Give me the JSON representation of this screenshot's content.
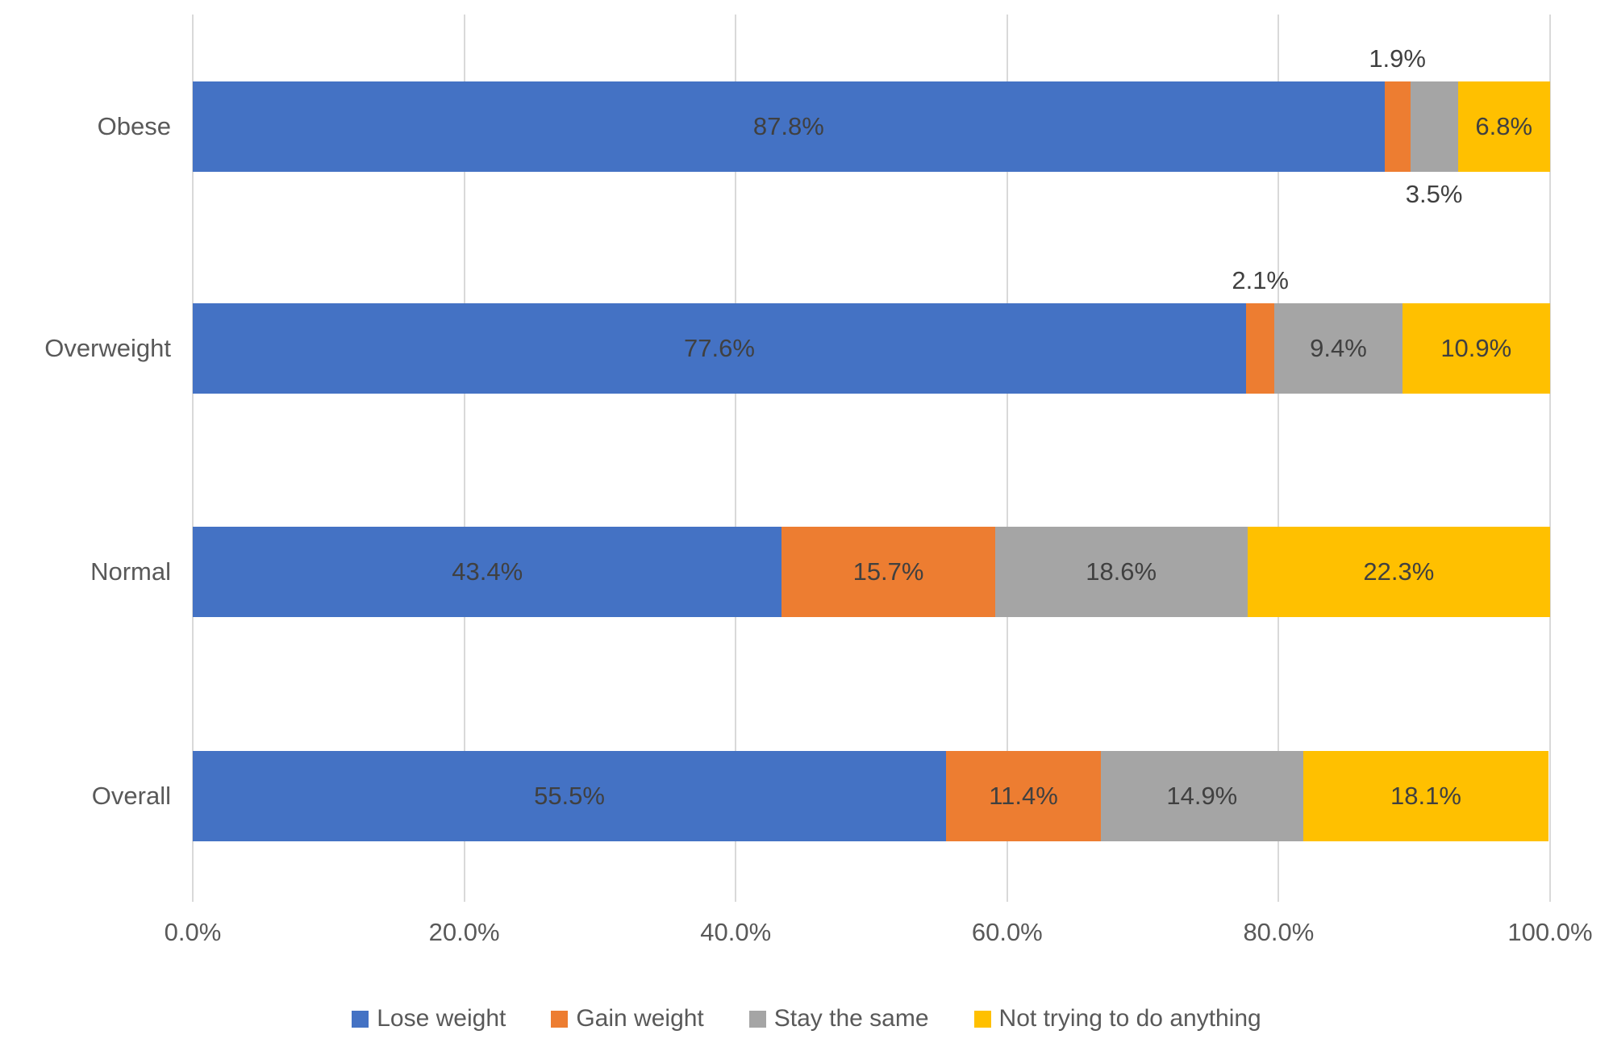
{
  "chart_data": {
    "type": "bar",
    "orientation": "horizontal",
    "stacked": true,
    "unit": "%",
    "title": "",
    "x_axis": {
      "min": 0,
      "max": 100,
      "tick_labels": [
        "0.0%",
        "20.0%",
        "40.0%",
        "60.0%",
        "80.0%",
        "100.0%"
      ],
      "grid": true
    },
    "categories": [
      "Obese",
      "Overweight",
      "Normal",
      "Overall"
    ],
    "series": [
      {
        "name": "Lose weight",
        "color": "#4472C4",
        "values": [
          87.8,
          77.6,
          43.4,
          55.5
        ]
      },
      {
        "name": "Gain weight",
        "color": "#ED7D31",
        "values": [
          1.9,
          2.1,
          15.7,
          11.4
        ]
      },
      {
        "name": "Stay the same",
        "color": "#A5A5A5",
        "values": [
          3.5,
          9.4,
          18.6,
          14.9
        ]
      },
      {
        "name": "Not trying to do anything",
        "color": "#FFC000",
        "values": [
          6.8,
          10.9,
          22.3,
          18.1
        ]
      }
    ],
    "data_labels": [
      [
        {
          "text": "87.8%",
          "placement": "inside"
        },
        {
          "text": "1.9%",
          "placement": "above"
        },
        {
          "text": "3.5%",
          "placement": "below"
        },
        {
          "text": "6.8%",
          "placement": "inside"
        }
      ],
      [
        {
          "text": "77.6%",
          "placement": "inside"
        },
        {
          "text": "2.1%",
          "placement": "above"
        },
        {
          "text": "9.4%",
          "placement": "inside"
        },
        {
          "text": "10.9%",
          "placement": "inside"
        }
      ],
      [
        {
          "text": "43.4%",
          "placement": "inside"
        },
        {
          "text": "15.7%",
          "placement": "inside"
        },
        {
          "text": "18.6%",
          "placement": "inside"
        },
        {
          "text": "22.3%",
          "placement": "inside"
        }
      ],
      [
        {
          "text": "55.5%",
          "placement": "inside"
        },
        {
          "text": "11.4%",
          "placement": "inside"
        },
        {
          "text": "14.9%",
          "placement": "inside"
        },
        {
          "text": "18.1%",
          "placement": "inside"
        }
      ]
    ],
    "legend": {
      "position": "bottom",
      "items": [
        "Lose weight",
        "Gain weight",
        "Stay the same",
        "Not trying to do anything"
      ]
    }
  },
  "styles": {
    "grid_color": "#D9D9D9",
    "data_label_color": "#404040",
    "axis_label_color": "#595959",
    "background": "#FFFFFF"
  }
}
